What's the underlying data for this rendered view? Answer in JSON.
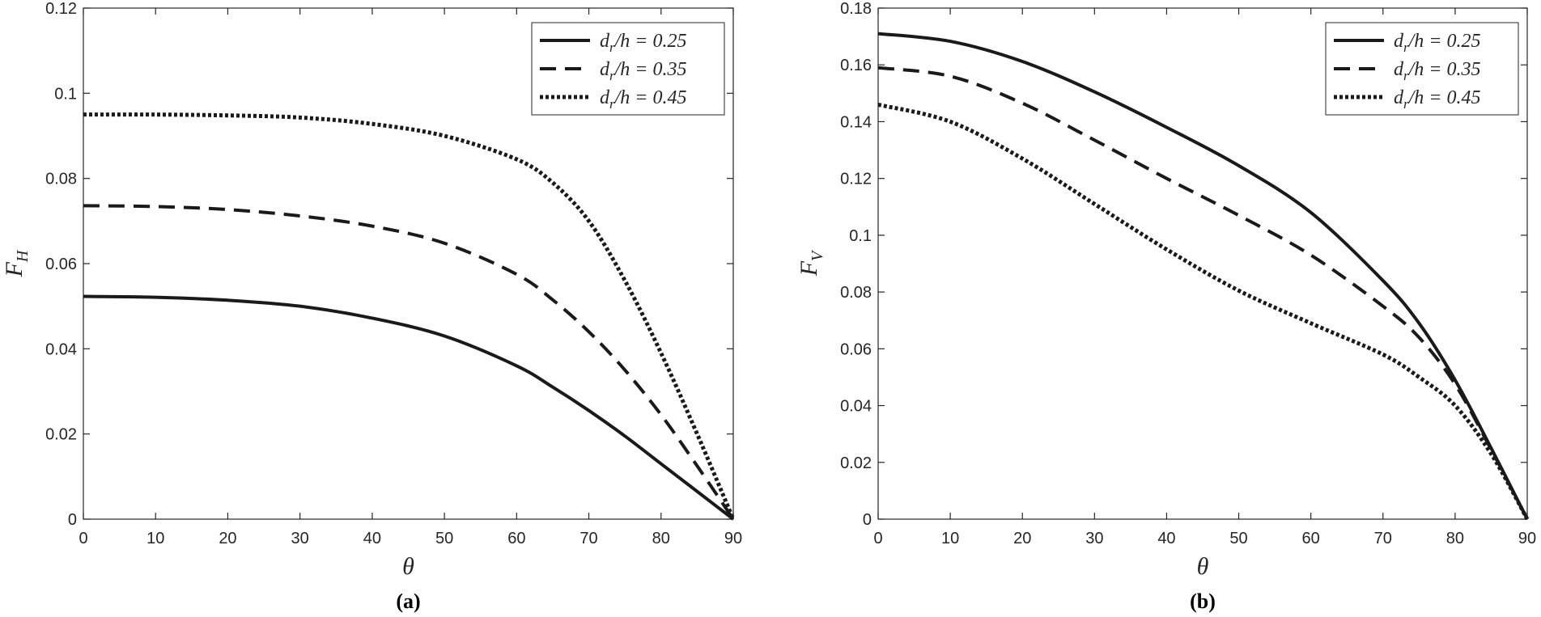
{
  "chart_data": [
    {
      "type": "line",
      "panel_label": "(a)",
      "xlabel": "θ",
      "ylabel": {
        "main": "F",
        "sub": "H"
      },
      "xlim": [
        0,
        90
      ],
      "ylim": [
        0,
        0.12
      ],
      "xticks": [
        "0",
        "10",
        "20",
        "30",
        "40",
        "50",
        "60",
        "70",
        "80",
        "90"
      ],
      "yticks": [
        "0",
        "0.02",
        "0.04",
        "0.06",
        "0.08",
        "0.1",
        "0.12"
      ],
      "legend_position": "top-right",
      "x": [
        0,
        10,
        20,
        30,
        40,
        50,
        60,
        65,
        70,
        75,
        80,
        85,
        90
      ],
      "series": [
        {
          "name": "d_r/h = 0.25",
          "label_parts": [
            "d",
            "r",
            "/h = 0.25"
          ],
          "style": "solid",
          "values": [
            0.0523,
            0.0521,
            0.0514,
            0.05,
            0.0472,
            0.043,
            0.036,
            0.031,
            0.0255,
            0.0195,
            0.013,
            0.0065,
            0.0
          ]
        },
        {
          "name": "d_r/h = 0.35",
          "label_parts": [
            "d",
            "r",
            "/h = 0.35"
          ],
          "style": "dashed",
          "values": [
            0.0736,
            0.0734,
            0.0727,
            0.0712,
            0.0688,
            0.0648,
            0.0575,
            0.0515,
            0.044,
            0.035,
            0.0245,
            0.0125,
            0.0
          ]
        },
        {
          "name": "d_r/h = 0.45",
          "label_parts": [
            "d",
            "r",
            "/h = 0.45"
          ],
          "style": "dotted",
          "values": [
            0.095,
            0.095,
            0.0948,
            0.0943,
            0.0928,
            0.09,
            0.0845,
            0.079,
            0.07,
            0.056,
            0.039,
            0.02,
            0.0
          ]
        }
      ]
    },
    {
      "type": "line",
      "panel_label": "(b)",
      "xlabel": "θ",
      "ylabel": {
        "main": "F",
        "sub": "V"
      },
      "xlim": [
        0,
        90
      ],
      "ylim": [
        0,
        0.18
      ],
      "xticks": [
        "0",
        "10",
        "20",
        "30",
        "40",
        "50",
        "60",
        "70",
        "80",
        "90"
      ],
      "yticks": [
        "0",
        "0.02",
        "0.04",
        "0.06",
        "0.08",
        "0.1",
        "0.12",
        "0.14",
        "0.16",
        "0.18"
      ],
      "legend_position": "top-right",
      "x": [
        0,
        10,
        20,
        30,
        40,
        50,
        60,
        70,
        75,
        80,
        85,
        90
      ],
      "series": [
        {
          "name": "d_r/h = 0.25",
          "label_parts": [
            "d",
            "r",
            "/h = 0.25"
          ],
          "style": "solid",
          "values": [
            0.171,
            0.1683,
            0.1612,
            0.1505,
            0.138,
            0.1245,
            0.108,
            0.084,
            0.069,
            0.049,
            0.025,
            0.0
          ]
        },
        {
          "name": "d_r/h = 0.35",
          "label_parts": [
            "d",
            "r",
            "/h = 0.35"
          ],
          "style": "dashed",
          "values": [
            0.159,
            0.156,
            0.1465,
            0.1335,
            0.12,
            0.107,
            0.093,
            0.075,
            0.064,
            0.0475,
            0.0245,
            0.0
          ]
        },
        {
          "name": "d_r/h = 0.45",
          "label_parts": [
            "d",
            "r",
            "/h = 0.45"
          ],
          "style": "dotted",
          "values": [
            0.146,
            0.14,
            0.127,
            0.111,
            0.095,
            0.0805,
            0.069,
            0.058,
            0.05,
            0.04,
            0.023,
            0.0
          ]
        }
      ]
    }
  ]
}
